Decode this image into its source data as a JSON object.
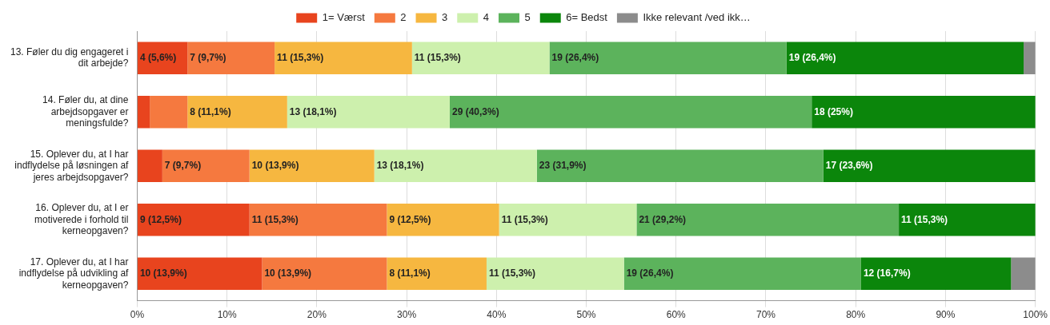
{
  "chart_data": {
    "type": "bar",
    "orientation": "horizontal",
    "stacked": true,
    "legend": "top",
    "grid": "x",
    "categories": [
      "13. Føler du dig engageret i dit arbejde?",
      "14. Føler du, at dine arbejdsopgaver er meningsfulde?",
      "15. Oplever du, at I har indflydelse på løsningen af jeres arbejdsopgaver?",
      "16. Oplever du, at I er motiverede i forhold til kerneopgaven?",
      "17. Oplever du, at I har indflydelse på udvikling af kerneopgaven?"
    ],
    "xlim": [
      0,
      100
    ],
    "xticks": [
      {
        "value": 0,
        "label": "0%"
      },
      {
        "value": 10,
        "label": "10%"
      },
      {
        "value": 20,
        "label": "20%"
      },
      {
        "value": 30,
        "label": "30%"
      },
      {
        "value": 40,
        "label": "40%"
      },
      {
        "value": 50,
        "label": "50%"
      },
      {
        "value": 60,
        "label": "60%"
      },
      {
        "value": 70,
        "label": "70%"
      },
      {
        "value": 80,
        "label": "80%"
      },
      {
        "value": 90,
        "label": "90%"
      },
      {
        "value": 100,
        "label": "100%"
      }
    ],
    "series": [
      {
        "name": "1= Værst",
        "color": "#e8441e",
        "values": [
          5.6,
          1.4,
          2.8,
          12.5,
          13.9
        ],
        "value_labels": [
          "4 (5,6%)",
          null,
          null,
          "9 (12,5%)",
          "10 (13,9%)"
        ]
      },
      {
        "name": "2",
        "color": "#f5793f",
        "values": [
          9.7,
          4.2,
          9.7,
          15.3,
          13.9
        ],
        "value_labels": [
          "7 (9,7%)",
          null,
          "7 (9,7%)",
          "11 (15,3%)",
          "10 (13,9%)"
        ]
      },
      {
        "name": "3",
        "color": "#f6b740",
        "values": [
          15.3,
          11.1,
          13.9,
          12.5,
          11.1
        ],
        "value_labels": [
          "11 (15,3%)",
          "8 (11,1%)",
          "10 (13,9%)",
          "9 (12,5%)",
          "8 (11,1%)"
        ]
      },
      {
        "name": "4",
        "color": "#cdf0ad",
        "values": [
          15.3,
          18.1,
          18.1,
          15.3,
          15.3
        ],
        "value_labels": [
          "11 (15,3%)",
          "13 (18,1%)",
          "13 (18,1%)",
          "11 (15,3%)",
          "11 (15,3%)"
        ]
      },
      {
        "name": "5",
        "color": "#5cb35c",
        "values": [
          26.4,
          40.3,
          31.9,
          29.2,
          26.4
        ],
        "value_labels": [
          "19 (26,4%)",
          "29 (40,3%)",
          "23 (31,9%)",
          "21 (29,2%)",
          "19 (26,4%)"
        ]
      },
      {
        "name": "6= Bedst",
        "color": "#0b860b",
        "values": [
          26.4,
          25,
          23.6,
          15.3,
          16.7
        ],
        "value_labels": [
          "19 (26,4%)",
          "18 (25%)",
          "17 (23,6%)",
          "11 (15,3%)",
          "12 (16,7%)"
        ]
      },
      {
        "name": "Ikke relevant /ved ikk…",
        "color": "#8c8c8c",
        "values": [
          1.4,
          null,
          null,
          null,
          2.8
        ],
        "value_labels": [
          null,
          null,
          null,
          null,
          null
        ]
      }
    ]
  }
}
